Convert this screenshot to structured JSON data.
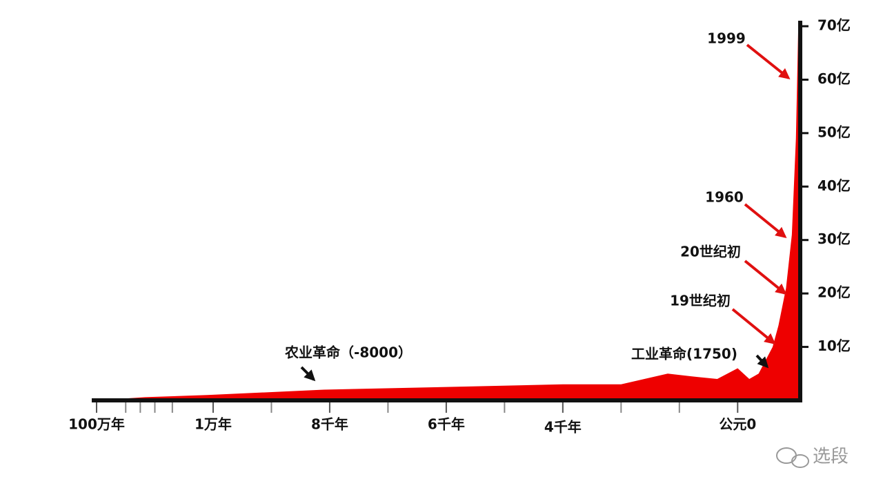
{
  "chart_data": {
    "type": "area",
    "x": [
      0,
      0.83,
      1.9,
      3.9,
      6,
      8,
      9,
      9.8,
      10.2,
      10.65,
      11,
      11.2,
      11.36,
      11.6,
      11.7,
      11.83,
      11.93,
      12.0,
      12.04
    ],
    "values": [
      0,
      0.6,
      1,
      2,
      2.5,
      3,
      3,
      5,
      4.5,
      4,
      6,
      4,
      5,
      10,
      14,
      21,
      31,
      49,
      70
    ],
    "color": "#ee0000",
    "xlim": [
      0,
      12.05
    ],
    "xticks": [
      {
        "value": 0,
        "label": "100万年"
      },
      {
        "value": 2,
        "label": "1万年"
      },
      {
        "value": 4,
        "label": "8千年"
      },
      {
        "value": 6,
        "label": "6千年"
      },
      {
        "value": 8,
        "label": "4千年"
      },
      {
        "value": 11,
        "label": "公元0"
      }
    ],
    "minor_xticks": [
      0.5,
      0.75,
      1,
      1.3,
      3,
      5,
      7,
      9,
      10
    ],
    "ylim": [
      0,
      70
    ],
    "yticks": [
      {
        "value": 10,
        "label": "10亿"
      },
      {
        "value": 20,
        "label": "20亿"
      },
      {
        "value": 30,
        "label": "30亿"
      },
      {
        "value": 40,
        "label": "40亿"
      },
      {
        "value": 50,
        "label": "50亿"
      },
      {
        "value": 60,
        "label": "60亿"
      },
      {
        "value": 70,
        "label": "70亿"
      }
    ],
    "annotations": [
      "1999",
      "1960",
      "20世纪初",
      "19世纪初",
      "工业革命(1750)",
      "农业革命（-8000）"
    ],
    "watermark": "选段"
  }
}
